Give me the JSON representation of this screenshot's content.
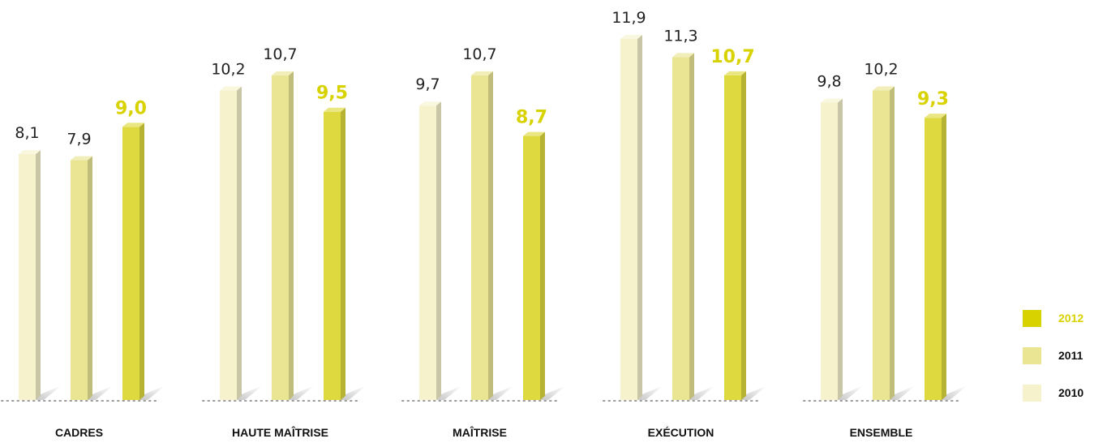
{
  "chart_data": {
    "type": "bar",
    "categories": [
      "CADRES",
      "HAUTE MAÎTRISE",
      "MAÎTRISE",
      "EXÉCUTION",
      "ENSEMBLE"
    ],
    "series": [
      {
        "name": "2010",
        "values": [
          8.1,
          10.2,
          9.7,
          11.9,
          9.8
        ],
        "labels": [
          "8,1",
          "10,2",
          "9,7",
          "11,9",
          "9,8"
        ],
        "color": "#F5F2CC"
      },
      {
        "name": "2011",
        "values": [
          7.9,
          10.7,
          10.7,
          11.3,
          10.2
        ],
        "labels": [
          "7,9",
          "10,7",
          "10,7",
          "11,3",
          "10,2"
        ],
        "color": "#EAE593"
      },
      {
        "name": "2012",
        "values": [
          9.0,
          9.5,
          8.7,
          10.7,
          9.3
        ],
        "labels": [
          "9,0",
          "9,5",
          "8,7",
          "10,7",
          "9,3"
        ],
        "color": "#DED93E"
      }
    ],
    "highlight_series": "2012",
    "highlight_color": "#D8D200",
    "ylim": [
      0,
      12.5
    ],
    "grid": false,
    "legend_position": "right",
    "legend_order": [
      "2012",
      "2011",
      "2010"
    ]
  }
}
